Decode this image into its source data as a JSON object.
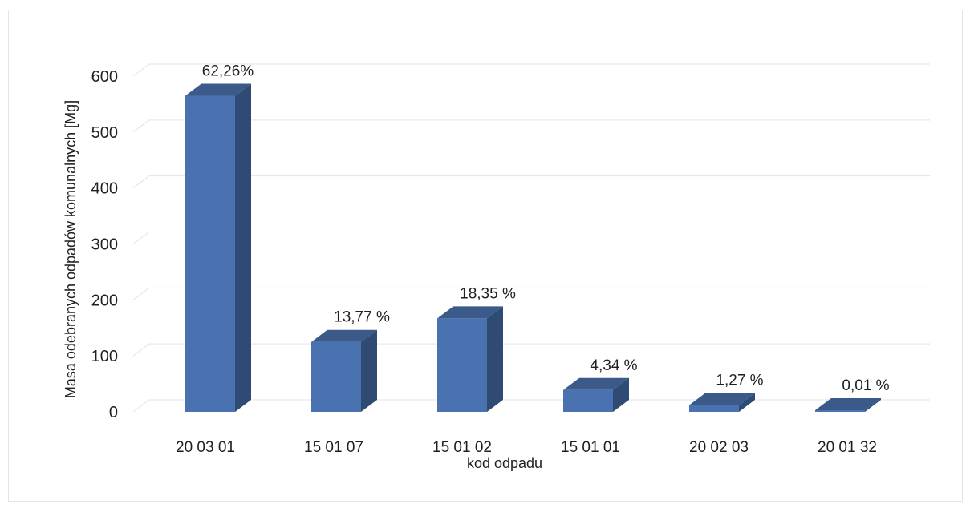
{
  "chart_data": {
    "type": "bar",
    "style": "3d-column",
    "categories": [
      "20 03 01",
      "15 01 07",
      "15 01 02",
      "15 01 01",
      "20 02 03",
      "20 01 32"
    ],
    "values": [
      565,
      125,
      167,
      39,
      12,
      0.1
    ],
    "data_labels": [
      "62,26%",
      "13,77 %",
      "18,35 %",
      "4,34 %",
      "1,27 %",
      "0,01 %"
    ],
    "xlabel": "kod odpadu",
    "ylabel": "Masa odebranych odpadów komunalnych [Mg]",
    "ylim": [
      0,
      600
    ],
    "yticks": [
      0,
      100,
      200,
      300,
      400,
      500,
      600
    ],
    "grid": true,
    "legend": "none",
    "colors": {
      "bar_front": "#4a72b0",
      "bar_top": "#3b5a8a",
      "bar_side": "#2f4a73",
      "grid": "#e3e3e3"
    }
  }
}
